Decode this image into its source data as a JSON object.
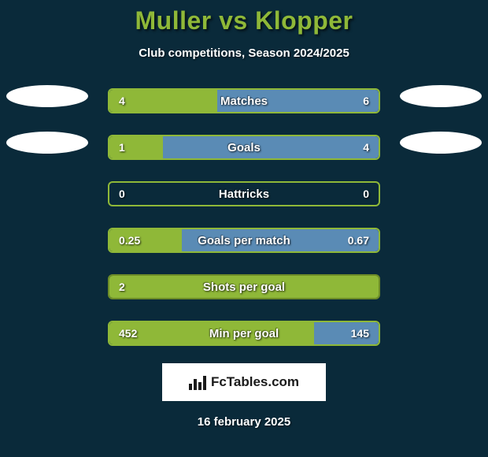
{
  "title": "Muller vs Klopper",
  "subtitle": "Club competitions, Season 2024/2025",
  "date": "16 february 2025",
  "brand": "FcTables.com",
  "colors": {
    "background": "#0a2a3a",
    "accent": "#8fb838",
    "accent_dark": "#6d8c28",
    "blue": "#5a8bb5",
    "white": "#ffffff"
  },
  "side_ellipses_row_indices": [
    0,
    1
  ],
  "stats": [
    {
      "label": "Matches",
      "left_value": "4",
      "right_value": "6",
      "left_fill_pct": 40,
      "right_fill_pct": 60,
      "left_color": "#8fb838",
      "right_color": "#5a8bb5",
      "border_color": "#8fb838"
    },
    {
      "label": "Goals",
      "left_value": "1",
      "right_value": "4",
      "left_fill_pct": 20,
      "right_fill_pct": 80,
      "left_color": "#8fb838",
      "right_color": "#5a8bb5",
      "border_color": "#8fb838"
    },
    {
      "label": "Hattricks",
      "left_value": "0",
      "right_value": "0",
      "left_fill_pct": 0,
      "right_fill_pct": 0,
      "left_color": "#8fb838",
      "right_color": "#5a8bb5",
      "border_color": "#8fb838"
    },
    {
      "label": "Goals per match",
      "left_value": "0.25",
      "right_value": "0.67",
      "left_fill_pct": 27,
      "right_fill_pct": 73,
      "left_color": "#8fb838",
      "right_color": "#5a8bb5",
      "border_color": "#8fb838"
    },
    {
      "label": "Shots per goal",
      "left_value": "2",
      "right_value": "",
      "left_fill_pct": 100,
      "right_fill_pct": 0,
      "left_color": "#8fb838",
      "right_color": "#5a8bb5",
      "border_color": "#6d8c28"
    },
    {
      "label": "Min per goal",
      "left_value": "452",
      "right_value": "145",
      "left_fill_pct": 76,
      "right_fill_pct": 24,
      "left_color": "#8fb838",
      "right_color": "#5a8bb5",
      "border_color": "#8fb838"
    }
  ]
}
